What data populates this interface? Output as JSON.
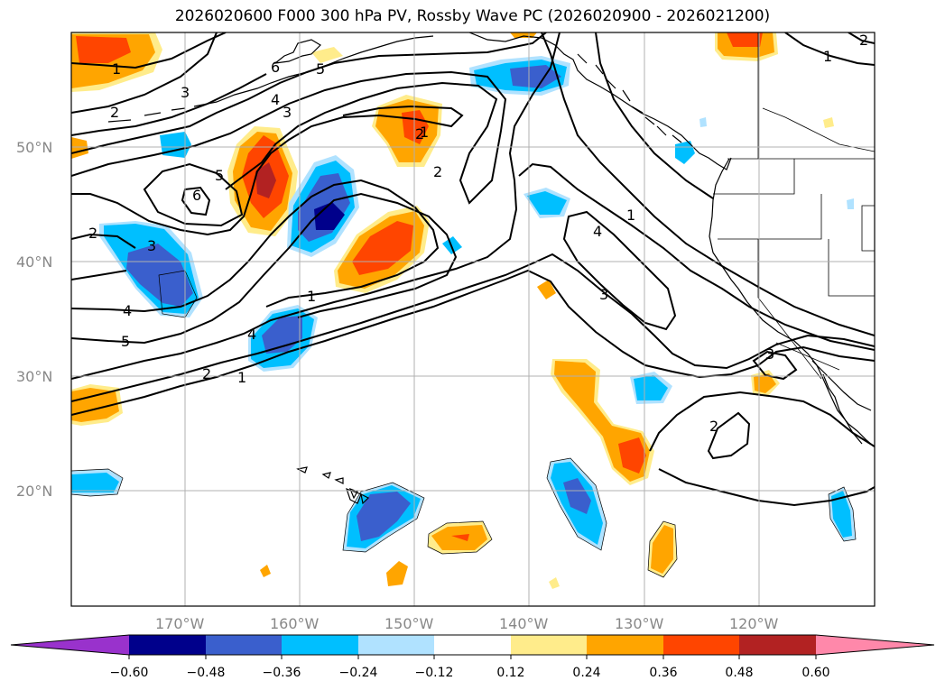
{
  "title": "2026020600 F000 300 hPa PV, Rossby Wave PC (2026020900 - 2026021200)",
  "lat_labels": [
    "50°N",
    "40°N",
    "30°N",
    "20°N"
  ],
  "lon_labels": [
    "170°W",
    "160°W",
    "150°W",
    "140°W",
    "130°W",
    "120°W"
  ],
  "colorbar": {
    "colors": [
      "#9932cc",
      "#00008b",
      "#3a5fcd",
      "#00bfff",
      "#b0e2ff",
      "#ffffff",
      "#ffec8b",
      "#ffa500",
      "#ff4500",
      "#b22222",
      "#ff88aa"
    ],
    "ticks": [
      "−0.60",
      "−0.48",
      "−0.36",
      "−0.24",
      "−0.12",
      "0.12",
      "0.24",
      "0.36",
      "0.48",
      "0.60"
    ]
  },
  "contour_labels": [
    "1",
    "2",
    "3",
    "6",
    "5",
    "4",
    "3",
    "1",
    "2",
    "1",
    "2",
    "2",
    "3",
    "4",
    "5",
    "6",
    "5",
    "1",
    "4",
    "3",
    "4",
    "2",
    "1",
    "3",
    "2",
    "1",
    "2"
  ],
  "colors": {
    "land_line": "#000000",
    "grid": "#b0b0b0",
    "contour": "#000000"
  }
}
